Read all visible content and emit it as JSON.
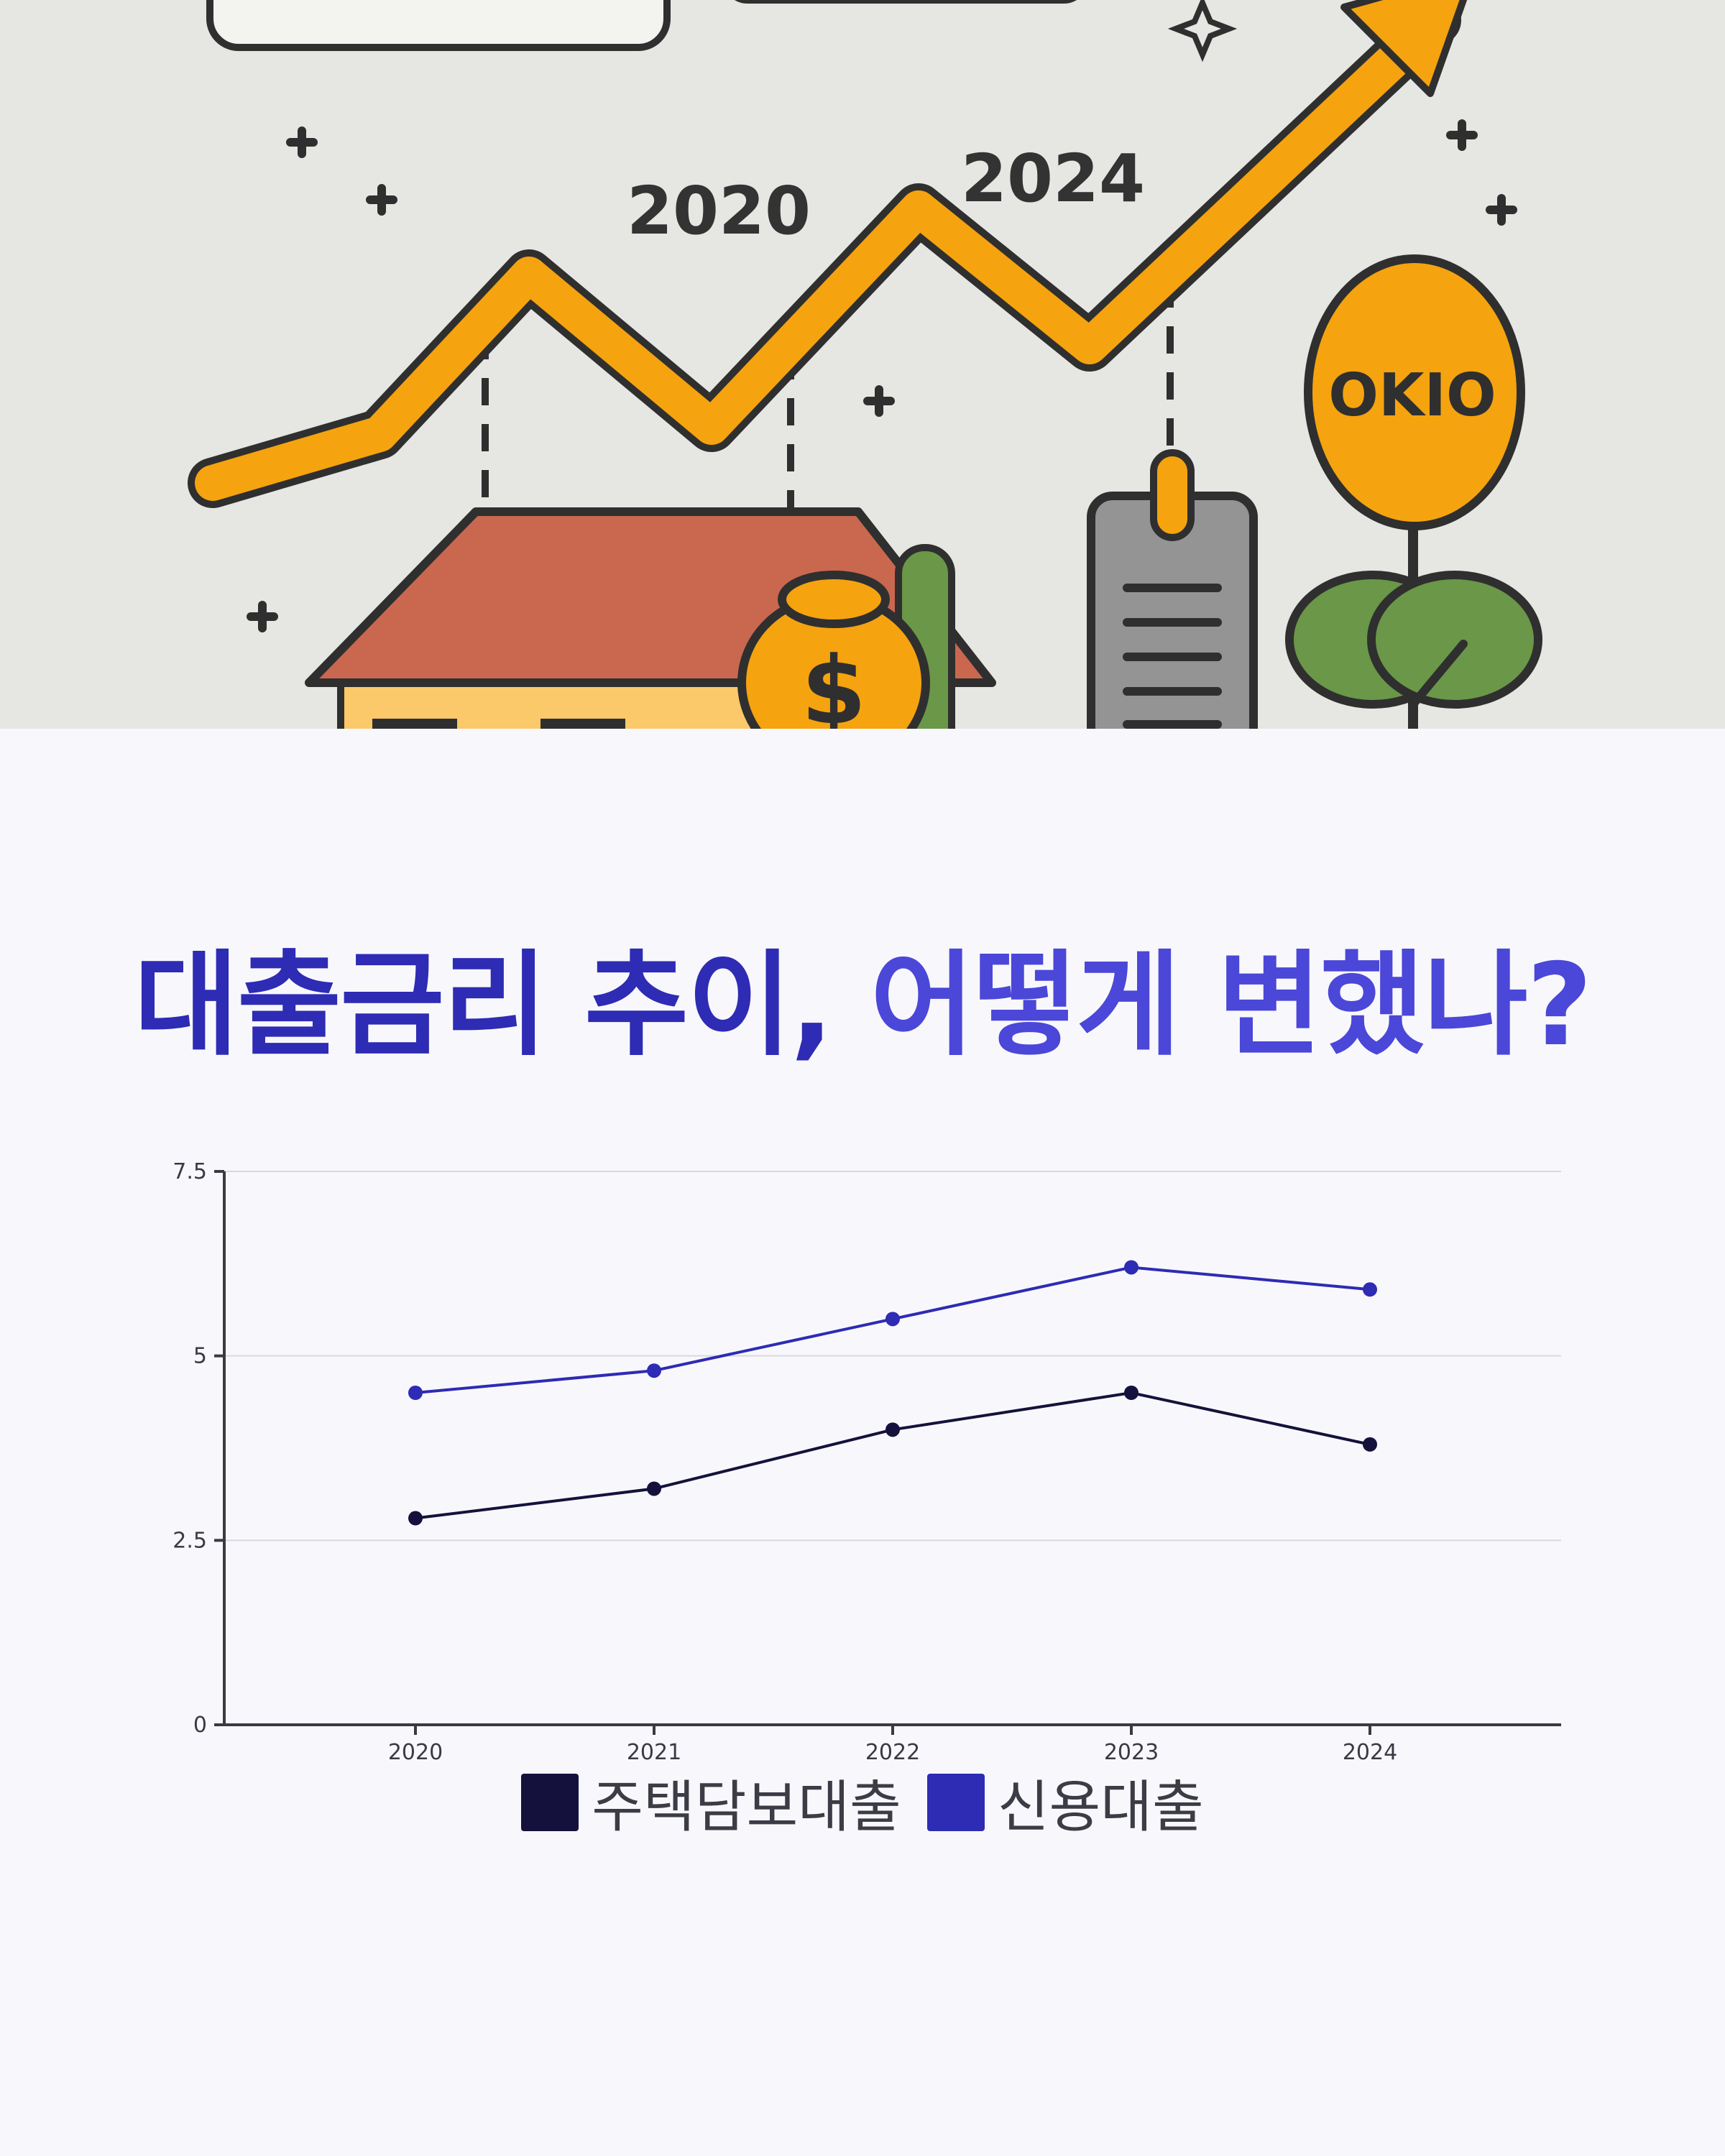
{
  "hero": {
    "illustration": "loan-rate-rise-illustration",
    "year_labels": [
      "2020",
      "2024"
    ],
    "coin_text": "OKIO",
    "bag_symbol": "$"
  },
  "title": {
    "part1": "대출금리 추이, ",
    "part2": "어떻게 변했나?"
  },
  "colors": {
    "mortgage": "#14123c",
    "credit": "#2e2bb4",
    "title_primary": "#2e2bb4",
    "title_accent": "#4b47d8",
    "arrow": "#f5a30f",
    "background_top": "#e6e6e2",
    "background_bottom": "#f8f8fc"
  },
  "chart_data": {
    "type": "line",
    "title": "",
    "xlabel": "",
    "ylabel": "",
    "categories": [
      "2020",
      "2021",
      "2022",
      "2023",
      "2024"
    ],
    "ylim": [
      0,
      7.5
    ],
    "yticks": [
      0,
      2.5,
      5,
      7.5
    ],
    "ytick_labels": [
      "0",
      "2.5",
      "5",
      "7.5"
    ],
    "grid": true,
    "legend_position": "bottom-center",
    "series": [
      {
        "name": "주택담보대출",
        "values": [
          2.8,
          3.2,
          4.0,
          4.5,
          3.8
        ]
      },
      {
        "name": "신용대출",
        "values": [
          4.5,
          4.8,
          5.5,
          6.2,
          5.9
        ]
      }
    ]
  }
}
